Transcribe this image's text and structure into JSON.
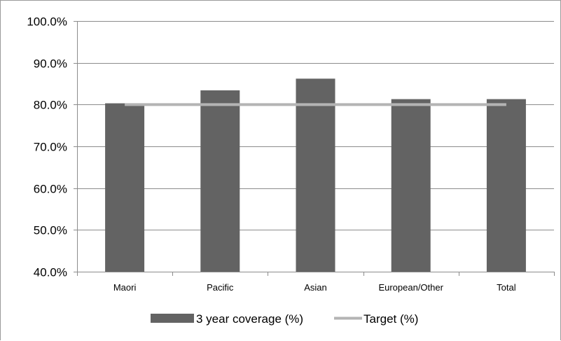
{
  "chart_data": {
    "type": "bar",
    "categories": [
      "Maori",
      "Pacific",
      "Asian",
      "European/Other",
      "Total"
    ],
    "series": [
      {
        "name": "3 year coverage (%)",
        "type": "bar",
        "values": [
          80.3,
          83.4,
          86.2,
          81.3,
          81.3
        ],
        "color": "#636363"
      },
      {
        "name": "Target (%)",
        "type": "line",
        "values": [
          80.0,
          80.0,
          80.0,
          80.0,
          80.0
        ],
        "color": "#b4b4b4"
      }
    ],
    "ylim": [
      40.0,
      100.0
    ],
    "yticks": [
      "100.0%",
      "90.0%",
      "80.0%",
      "70.0%",
      "60.0%",
      "50.0%",
      "40.0%"
    ],
    "ytick_values": [
      100,
      90,
      80,
      70,
      60,
      50,
      40
    ],
    "grid": true,
    "legend_position": "bottom",
    "title": "",
    "xlabel": "",
    "ylabel": ""
  },
  "colors": {
    "bar": "#636363",
    "target_line": "#b4b4b4",
    "gridline": "#8c8c8c",
    "axis": "#8c8c8c"
  }
}
